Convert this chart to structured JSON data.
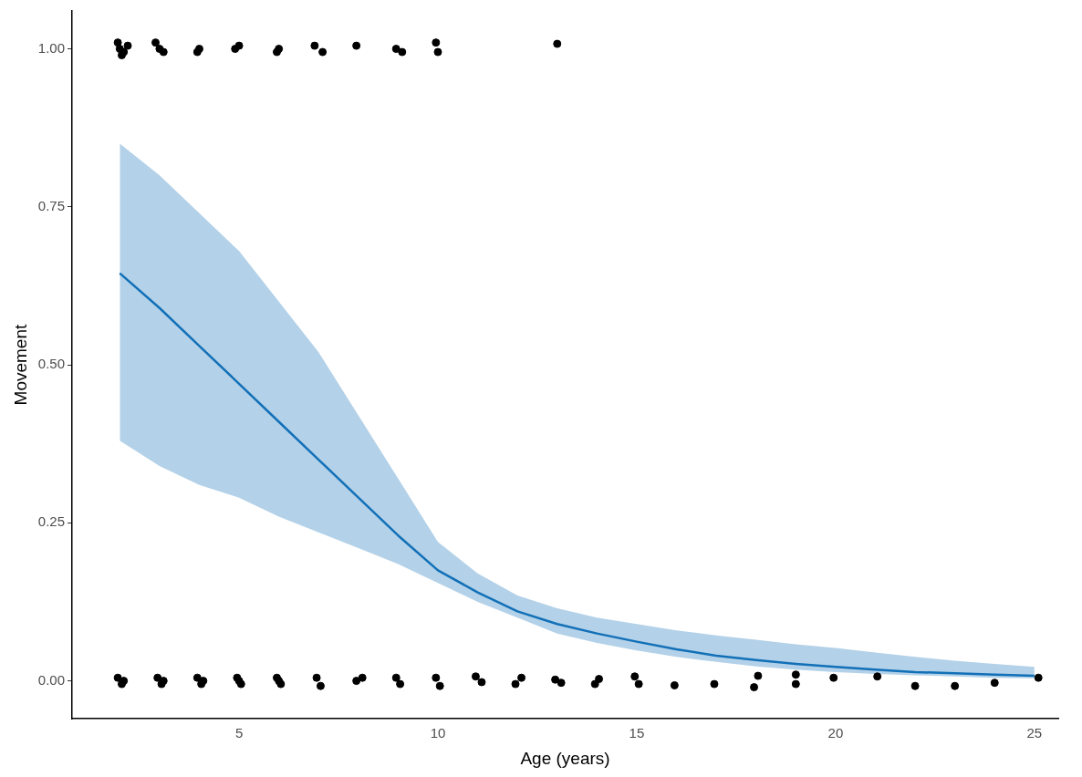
{
  "chart_data": {
    "type": "scatter",
    "xlabel": "Age (years)",
    "ylabel": "Movement",
    "xlim": [
      0.8,
      25.6
    ],
    "xticks": [
      5,
      10,
      15,
      20,
      25
    ],
    "ylim": [
      -0.06,
      1.06
    ],
    "yticks": [
      {
        "value": 0,
        "label": "0.00"
      },
      {
        "value": 0.25,
        "label": "0.25"
      },
      {
        "value": 0.5,
        "label": "0.50"
      },
      {
        "value": 0.75,
        "label": "0.75"
      },
      {
        "value": 1,
        "label": "1.00"
      }
    ],
    "grid": false,
    "legend": false,
    "marker": "circle",
    "series": [
      {
        "type": "line",
        "marker": "none",
        "color": "#1270b8",
        "x": [
          2,
          3,
          4,
          5,
          6,
          7,
          8,
          9,
          10,
          11,
          12,
          13,
          14,
          15,
          16,
          17,
          18,
          19,
          20,
          21,
          22,
          23,
          24,
          25
        ],
        "values": [
          0.645,
          0.59,
          0.53,
          0.47,
          0.41,
          0.35,
          0.29,
          0.23,
          0.175,
          0.14,
          0.11,
          0.09,
          0.075,
          0.062,
          0.05,
          0.04,
          0.033,
          0.027,
          0.022,
          0.018,
          0.014,
          0.012,
          0.01,
          0.008
        ],
        "lower": [
          0.38,
          0.34,
          0.31,
          0.29,
          0.26,
          0.235,
          0.21,
          0.185,
          0.155,
          0.125,
          0.1,
          0.075,
          0.06,
          0.048,
          0.038,
          0.03,
          0.023,
          0.018,
          0.014,
          0.011,
          0.009,
          0.007,
          0.005,
          0.004
        ],
        "upper": [
          0.85,
          0.8,
          0.74,
          0.68,
          0.6,
          0.52,
          0.42,
          0.32,
          0.22,
          0.17,
          0.135,
          0.115,
          0.1,
          0.09,
          0.08,
          0.072,
          0.065,
          0.058,
          0.052,
          0.045,
          0.038,
          0.032,
          0.027,
          0.022
        ]
      },
      {
        "type": "scatter",
        "color": "#000000",
        "x": [
          2.0,
          2.1,
          2.2,
          1.95,
          2.05,
          3.0,
          3.1,
          2.9,
          4.0,
          3.95,
          5.0,
          4.9,
          6.0,
          5.95,
          6.9,
          7.1,
          7.95,
          8.95,
          9.1,
          9.95,
          10.0,
          13.0,
          1.95,
          2.05,
          2.1,
          2.95,
          3.05,
          3.1,
          3.95,
          4.05,
          4.1,
          4.95,
          5.05,
          5.0,
          5.95,
          6.05,
          6.0,
          6.95,
          7.05,
          7.95,
          8.1,
          8.95,
          9.05,
          9.95,
          10.05,
          10.95,
          11.1,
          11.95,
          12.1,
          12.95,
          13.1,
          13.95,
          14.05,
          14.95,
          15.05,
          15.95,
          16.95,
          17.95,
          18.05,
          19.0,
          19.0,
          19.95,
          21.05,
          22.0,
          23.0,
          24.0,
          25.1
        ],
        "values": [
          1.0,
          0.995,
          1.005,
          1.01,
          0.99,
          1.0,
          0.995,
          1.01,
          1.0,
          0.995,
          1.005,
          1.0,
          1.0,
          0.995,
          1.005,
          0.995,
          1.005,
          1.0,
          0.995,
          1.01,
          0.995,
          1.008,
          0.005,
          -0.005,
          0.0,
          0.005,
          -0.005,
          0.0,
          0.005,
          -0.005,
          0.0,
          0.005,
          -0.005,
          0.0,
          0.005,
          -0.005,
          0.0,
          0.005,
          -0.008,
          0.0,
          0.005,
          0.005,
          -0.005,
          0.005,
          -0.008,
          0.007,
          -0.002,
          -0.005,
          0.005,
          0.002,
          -0.003,
          -0.005,
          0.003,
          0.007,
          -0.005,
          -0.007,
          -0.005,
          -0.01,
          0.008,
          0.01,
          -0.005,
          0.005,
          0.007,
          -0.008,
          -0.008,
          -0.003,
          0.005
        ]
      }
    ]
  }
}
